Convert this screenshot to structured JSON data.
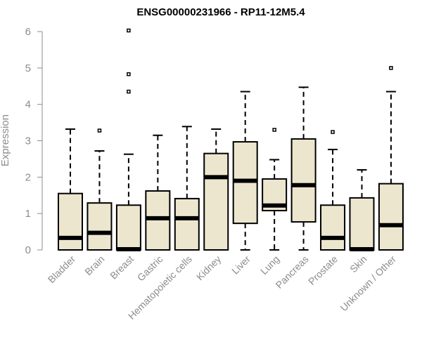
{
  "chart_data": {
    "type": "boxplot",
    "title": "ENSG00000231966 - RP11-12M5.4",
    "xlabel": "",
    "ylabel": "Expression",
    "ylim": [
      0,
      6
    ],
    "yticks": [
      0,
      1,
      2,
      3,
      4,
      5,
      6
    ],
    "grid": false,
    "box_color": "#ede6cf",
    "categories": [
      "Bladder",
      "Brain",
      "Breast",
      "Gastric",
      "Hematopoietic cells",
      "Kidney",
      "Liver",
      "Lung",
      "Pancreas",
      "Prostate",
      "Skin",
      "Unknown / Other"
    ],
    "boxes": [
      {
        "min": 0,
        "q1": 0,
        "median": 0.33,
        "q3": 1.55,
        "max": 3.32,
        "outliers": []
      },
      {
        "min": 0,
        "q1": 0,
        "median": 0.47,
        "q3": 1.29,
        "max": 2.72,
        "outliers": [
          3.28
        ]
      },
      {
        "min": 0,
        "q1": 0,
        "median": 0.02,
        "q3": 1.23,
        "max": 2.63,
        "outliers": [
          4.35,
          4.83,
          6.03
        ]
      },
      {
        "min": 0,
        "q1": 0,
        "median": 0.87,
        "q3": 1.62,
        "max": 3.15,
        "outliers": []
      },
      {
        "min": 0,
        "q1": 0,
        "median": 0.87,
        "q3": 1.41,
        "max": 3.39,
        "outliers": []
      },
      {
        "min": 0,
        "q1": 0,
        "median": 2.0,
        "q3": 2.65,
        "max": 3.32,
        "outliers": []
      },
      {
        "min": 0,
        "q1": 0.73,
        "median": 1.9,
        "q3": 2.97,
        "max": 4.35,
        "outliers": []
      },
      {
        "min": 0,
        "q1": 1.08,
        "median": 1.22,
        "q3": 1.95,
        "max": 2.48,
        "outliers": [
          3.3
        ]
      },
      {
        "min": 0,
        "q1": 0.77,
        "median": 1.78,
        "q3": 3.05,
        "max": 4.47,
        "outliers": []
      },
      {
        "min": 0,
        "q1": 0,
        "median": 0.33,
        "q3": 1.23,
        "max": 2.76,
        "outliers": [
          3.24
        ]
      },
      {
        "min": 0,
        "q1": 0,
        "median": 0.02,
        "q3": 1.43,
        "max": 2.2,
        "outliers": []
      },
      {
        "min": 0,
        "q1": 0,
        "median": 0.68,
        "q3": 1.82,
        "max": 4.35,
        "outliers": [
          5.0
        ]
      }
    ]
  }
}
